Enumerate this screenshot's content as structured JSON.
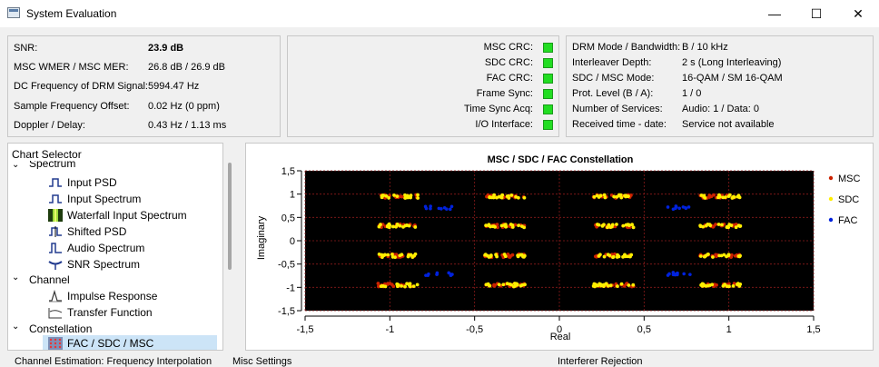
{
  "window": {
    "title": "System Evaluation",
    "minimize": "—",
    "maximize": "☐",
    "close": "✕"
  },
  "stats": [
    {
      "label": "SNR:",
      "value": "23.9 dB"
    },
    {
      "label": "MSC WMER / MSC MER:",
      "value": "26.8 dB / 26.9 dB"
    },
    {
      "label": "DC Frequency of DRM Signal:",
      "value": "5994.47 Hz"
    },
    {
      "label": "Sample Frequency Offset:",
      "value": "0.02 Hz (0 ppm)"
    },
    {
      "label": "Doppler / Delay:",
      "value": "0.43 Hz / 1.13 ms"
    }
  ],
  "status": [
    {
      "label": "MSC CRC:",
      "color": "#22dd22"
    },
    {
      "label": "SDC CRC:",
      "color": "#22dd22"
    },
    {
      "label": "FAC CRC:",
      "color": "#22dd22"
    },
    {
      "label": "Frame Sync:",
      "color": "#22dd22"
    },
    {
      "label": "Time Sync Acq:",
      "color": "#22dd22"
    },
    {
      "label": "I/O Interface:",
      "color": "#22dd22"
    }
  ],
  "drm": [
    {
      "label": "DRM Mode / Bandwidth:",
      "value": "B / 10 kHz"
    },
    {
      "label": "Interleaver Depth:",
      "value": "2 s (Long Interleaving)"
    },
    {
      "label": "SDC / MSC Mode:",
      "value": "16-QAM / SM 16-QAM"
    },
    {
      "label": "Prot. Level (B / A):",
      "value": "1 / 0"
    },
    {
      "label": "Number of Services:",
      "value": "Audio: 1 / Data: 0"
    },
    {
      "label": "Received time - date:",
      "value": "Service not available"
    }
  ],
  "tree": {
    "header": "Chart Selector",
    "spectrum": "Spectrum",
    "items1": [
      "Input PSD",
      "Input Spectrum",
      "Waterfall Input Spectrum",
      "Shifted PSD",
      "Audio Spectrum",
      "SNR Spectrum"
    ],
    "channel": "Channel",
    "items2": [
      "Impulse Response",
      "Transfer Function"
    ],
    "constellation": "Constellation",
    "items3": [
      "FAC / SDC / MSC"
    ]
  },
  "chart_data": {
    "type": "scatter",
    "title": "MSC / SDC / FAC Constellation",
    "xlabel": "Real",
    "ylabel": "Imaginary",
    "xlim": [
      -1.5,
      1.5
    ],
    "ylim": [
      -1.5,
      1.5
    ],
    "xticks": [
      "-1,5",
      "-1",
      "-0,5",
      "0",
      "0,5",
      "1",
      "1,5"
    ],
    "yticks": [
      "1,5",
      "1",
      "0,5",
      "0",
      "-0,5",
      "-1",
      "-1,5"
    ],
    "grid": true,
    "legend_position": "right",
    "series": [
      {
        "name": "MSC",
        "color": "#cc2200",
        "points": [
          [
            -0.95,
            0.95
          ],
          [
            -0.32,
            0.95
          ],
          [
            0.32,
            0.95
          ],
          [
            0.95,
            0.95
          ],
          [
            -0.95,
            0.32
          ],
          [
            -0.32,
            0.32
          ],
          [
            0.32,
            0.32
          ],
          [
            0.95,
            0.32
          ],
          [
            -0.95,
            -0.32
          ],
          [
            -0.32,
            -0.32
          ],
          [
            0.32,
            -0.32
          ],
          [
            0.95,
            -0.32
          ],
          [
            -0.95,
            -0.95
          ],
          [
            -0.32,
            -0.95
          ],
          [
            0.32,
            -0.95
          ],
          [
            0.95,
            -0.95
          ]
        ]
      },
      {
        "name": "SDC",
        "color": "#ffee00",
        "points": [
          [
            -0.95,
            0.95
          ],
          [
            -0.32,
            0.95
          ],
          [
            0.32,
            0.95
          ],
          [
            0.95,
            0.95
          ],
          [
            -0.95,
            0.32
          ],
          [
            -0.32,
            0.32
          ],
          [
            0.32,
            0.32
          ],
          [
            0.95,
            0.32
          ],
          [
            -0.95,
            -0.32
          ],
          [
            -0.32,
            -0.32
          ],
          [
            0.32,
            -0.32
          ],
          [
            0.95,
            -0.32
          ],
          [
            -0.95,
            -0.95
          ],
          [
            -0.32,
            -0.95
          ],
          [
            0.32,
            -0.95
          ],
          [
            0.95,
            -0.95
          ]
        ]
      },
      {
        "name": "FAC",
        "color": "#0022dd",
        "points": [
          [
            -0.71,
            0.71
          ],
          [
            0.71,
            0.71
          ],
          [
            -0.71,
            -0.71
          ],
          [
            0.71,
            -0.71
          ]
        ]
      }
    ]
  },
  "tabs": [
    "Channel Estimation: Frequency Interpolation",
    "Misc Settings",
    "Interferer Rejection"
  ]
}
